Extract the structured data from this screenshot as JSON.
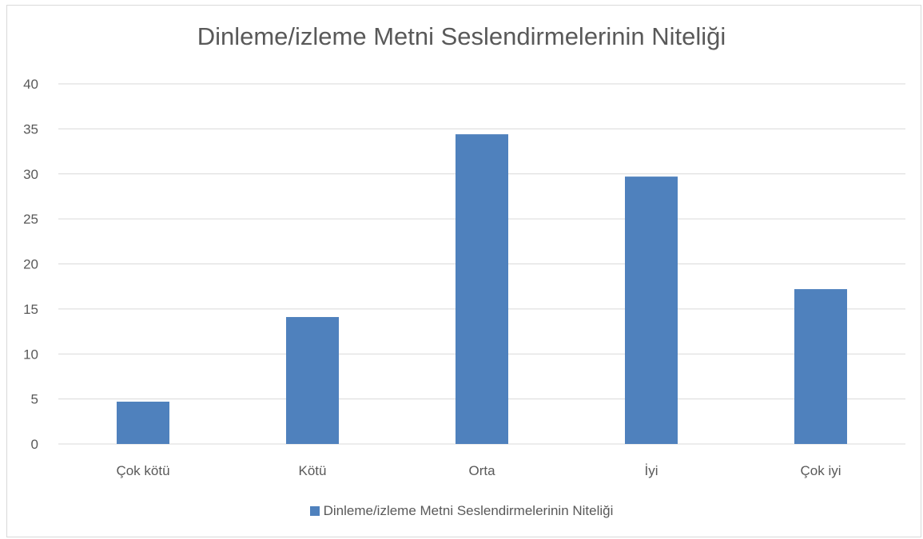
{
  "chart_data": {
    "type": "bar",
    "title": "Dinleme/izleme Metni Seslendirmelerinin Niteliği",
    "categories": [
      "Çok kötü",
      "Kötü",
      "Orta",
      "İyi",
      "Çok iyi"
    ],
    "series": [
      {
        "name": "Dinleme/izleme Metni Seslendirmelerinin Niteliği",
        "values": [
          4.7,
          14.1,
          34.4,
          29.7,
          17.2
        ]
      }
    ],
    "ylim": [
      0,
      40
    ],
    "yticks": [
      0,
      5,
      10,
      15,
      20,
      25,
      30,
      35,
      40
    ],
    "grid": true,
    "legend_position": "bottom",
    "bar_color": "#4f81bd",
    "grid_color": "#d9d9d9",
    "text_color": "#595959"
  }
}
